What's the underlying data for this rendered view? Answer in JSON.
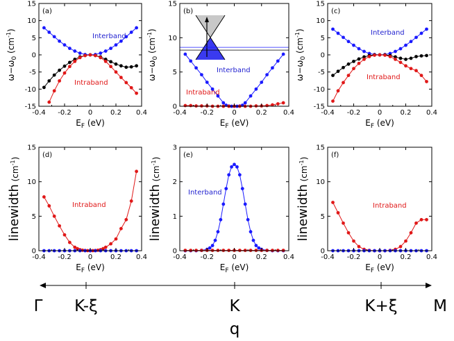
{
  "chart_data": [
    {
      "type": "line",
      "panel_label": "(a)",
      "xlabel": "E",
      "xlabel_sub": "F",
      "xlabel_unit": " (eV)",
      "ylabel": "ω−ω",
      "ylabel_sub": "0",
      "ylabel_unit": " (cm",
      "xlim": [
        -0.4,
        0.4
      ],
      "ylim": [
        -15,
        15
      ],
      "xticks": [
        "-0.4",
        "-0.2",
        "0",
        "0.2",
        "0.4"
      ],
      "yticks": [
        "-15",
        "-10",
        "-5",
        "0",
        "5",
        "10",
        "15"
      ],
      "series": [
        {
          "name": "Interband",
          "color": "#1a1aff",
          "x": [
            -0.36,
            -0.32,
            -0.28,
            -0.24,
            -0.2,
            -0.16,
            -0.12,
            -0.08,
            -0.04,
            0,
            0.04,
            0.08,
            0.12,
            0.16,
            0.2,
            0.24,
            0.28,
            0.32,
            0.36
          ],
          "y": [
            7.9,
            6.6,
            5.3,
            4.0,
            2.9,
            1.9,
            1.1,
            0.5,
            0.1,
            0,
            0.1,
            0.5,
            1.1,
            1.9,
            2.9,
            4.0,
            5.3,
            6.6,
            7.9
          ]
        },
        {
          "name": "",
          "color": "#000000",
          "x": [
            -0.36,
            -0.32,
            -0.28,
            -0.24,
            -0.2,
            -0.16,
            -0.12,
            -0.08,
            -0.04,
            0,
            0.04,
            0.08,
            0.12,
            0.16,
            0.2,
            0.24,
            0.28,
            0.32,
            0.36
          ],
          "y": [
            -9.5,
            -7.6,
            -5.9,
            -4.5,
            -3.3,
            -2.2,
            -1.3,
            -0.6,
            -0.2,
            0,
            -0.2,
            -0.6,
            -1.3,
            -2.0,
            -2.7,
            -3.2,
            -3.6,
            -3.5,
            -3.2
          ]
        },
        {
          "name": "Intraband",
          "color": "#e01818",
          "x": [
            -0.32,
            -0.28,
            -0.24,
            -0.2,
            -0.16,
            -0.12,
            -0.08,
            -0.04,
            0,
            0.04,
            0.08,
            0.12,
            0.16,
            0.2,
            0.24,
            0.28,
            0.32,
            0.36
          ],
          "y": [
            -13.8,
            -10.5,
            -7.6,
            -5.3,
            -3.4,
            -1.9,
            -0.8,
            -0.2,
            0,
            -0.2,
            -0.8,
            -1.9,
            -3.4,
            -5.0,
            -6.6,
            -8.1,
            -9.6,
            -11.2
          ]
        }
      ],
      "annotations": [
        "Interband",
        "Intraband"
      ]
    },
    {
      "type": "line",
      "panel_label": "(b)",
      "xlabel": "E",
      "xlabel_sub": "F",
      "xlabel_unit": " (eV)",
      "ylabel": "ω−ω",
      "ylabel_sub": "0",
      "ylabel_unit": " (cm",
      "xlim": [
        -0.4,
        0.4
      ],
      "ylim": [
        0,
        15
      ],
      "xticks": [
        "-0.4",
        "-0.2",
        "0",
        "0.2",
        "0.4"
      ],
      "yticks": [
        "0",
        "5",
        "10",
        "15"
      ],
      "series": [
        {
          "name": "Interband",
          "color": "#1a1aff",
          "x": [
            -0.36,
            -0.32,
            -0.28,
            -0.24,
            -0.2,
            -0.16,
            -0.12,
            -0.08,
            -0.06,
            -0.04,
            -0.02,
            0,
            0.02,
            0.04,
            0.06,
            0.08,
            0.12,
            0.16,
            0.2,
            0.24,
            0.28,
            0.32,
            0.36
          ],
          "y": [
            7.6,
            6.6,
            5.6,
            4.6,
            3.5,
            2.5,
            1.5,
            0.5,
            0.15,
            0.03,
            0,
            0,
            0,
            0.03,
            0.15,
            0.5,
            1.5,
            2.5,
            3.5,
            4.6,
            5.6,
            6.6,
            7.6
          ]
        },
        {
          "name": "Intraband",
          "color": "#e01818",
          "x": [
            -0.36,
            -0.32,
            -0.28,
            -0.24,
            -0.2,
            -0.16,
            -0.12,
            -0.08,
            -0.04,
            0,
            0.04,
            0.08,
            0.12,
            0.16,
            0.2,
            0.24,
            0.28,
            0.32,
            0.36
          ],
          "y": [
            0.1,
            0.1,
            0.05,
            0.05,
            0.05,
            0,
            0,
            0,
            0,
            0,
            0,
            0,
            0,
            0.05,
            0.05,
            0.1,
            0.2,
            0.35,
            0.5
          ]
        }
      ],
      "guide_lines": [
        {
          "x": [
            -0.4,
            0.4
          ],
          "y": [
            8.2,
            8.2
          ]
        },
        {
          "x": [
            -0.4,
            0.4
          ],
          "y": [
            8.6,
            8.6
          ]
        }
      ],
      "annotations": [
        "Interband",
        "Intraband"
      ],
      "inset": "Dirac cone diagram with upward arrow"
    },
    {
      "type": "line",
      "panel_label": "(c)",
      "xlabel": "E",
      "xlabel_sub": "F",
      "xlabel_unit": " (eV)",
      "ylabel": "ω−ω",
      "ylabel_sub": "0",
      "ylabel_unit": " (cm",
      "xlim": [
        -0.4,
        0.4
      ],
      "ylim": [
        -15,
        15
      ],
      "xticks": [
        "-0.4",
        "-0.2",
        "0",
        "0.2",
        "0.4"
      ],
      "yticks": [
        "-15",
        "-10",
        "-5",
        "0",
        "5",
        "10",
        "15"
      ],
      "series": [
        {
          "name": "Interband",
          "color": "#1a1aff",
          "x": [
            -0.36,
            -0.32,
            -0.28,
            -0.24,
            -0.2,
            -0.16,
            -0.12,
            -0.08,
            -0.04,
            0,
            0.04,
            0.08,
            0.12,
            0.16,
            0.2,
            0.24,
            0.28,
            0.32,
            0.36
          ],
          "y": [
            7.5,
            6.3,
            5.1,
            3.9,
            2.8,
            1.8,
            1.0,
            0.4,
            0.1,
            0,
            0.1,
            0.4,
            1.0,
            1.8,
            2.8,
            3.9,
            5.1,
            6.3,
            7.5
          ]
        },
        {
          "name": "",
          "color": "#000000",
          "x": [
            -0.36,
            -0.32,
            -0.28,
            -0.24,
            -0.2,
            -0.16,
            -0.12,
            -0.08,
            -0.04,
            0,
            0.04,
            0.08,
            0.12,
            0.16,
            0.2,
            0.24,
            0.28,
            0.32,
            0.36
          ],
          "y": [
            -6.0,
            -4.8,
            -3.7,
            -2.7,
            -1.9,
            -1.2,
            -0.6,
            -0.2,
            0,
            0,
            0,
            -0.2,
            -0.6,
            -1.0,
            -1.3,
            -1.0,
            -0.5,
            -0.3,
            -0.2
          ]
        },
        {
          "name": "Intraband",
          "color": "#e01818",
          "x": [
            -0.36,
            -0.32,
            -0.28,
            -0.24,
            -0.2,
            -0.16,
            -0.12,
            -0.08,
            -0.04,
            0,
            0.04,
            0.08,
            0.12,
            0.16,
            0.2,
            0.24,
            0.28,
            0.32,
            0.36
          ],
          "y": [
            -13.5,
            -10.5,
            -8.1,
            -6.0,
            -4.0,
            -2.5,
            -1.3,
            -0.5,
            -0.1,
            0,
            -0.1,
            -0.5,
            -1.3,
            -2.2,
            -3.2,
            -4.0,
            -4.6,
            -6.0,
            -7.8
          ]
        }
      ],
      "annotations": [
        "Interband",
        "Intraband"
      ]
    },
    {
      "type": "line",
      "panel_label": "(d)",
      "xlabel": "E",
      "xlabel_sub": "F",
      "xlabel_unit": " (eV)",
      "ylabel": "linewidth",
      "ylabel_unit": " (cm",
      "xlim": [
        -0.4,
        0.4
      ],
      "ylim": [
        0,
        15
      ],
      "xticks": [
        "-0.4",
        "-0.2",
        "0",
        "0.2",
        "0.4"
      ],
      "yticks": [
        "0",
        "5",
        "10",
        "15"
      ],
      "series": [
        {
          "name": "Intraband",
          "color": "#e01818",
          "x": [
            -0.36,
            -0.32,
            -0.28,
            -0.24,
            -0.2,
            -0.16,
            -0.12,
            -0.1,
            -0.08,
            -0.06,
            -0.04,
            -0.02,
            0,
            0.02,
            0.04,
            0.06,
            0.08,
            0.1,
            0.12,
            0.16,
            0.2,
            0.24,
            0.28,
            0.32,
            0.36
          ],
          "y": [
            7.8,
            6.5,
            5.0,
            3.6,
            2.3,
            1.2,
            0.5,
            0.3,
            0.15,
            0.07,
            0.03,
            0.01,
            0,
            0.01,
            0.03,
            0.07,
            0.15,
            0.3,
            0.5,
            1.0,
            1.7,
            3.2,
            4.5,
            7.2,
            11.5
          ]
        },
        {
          "name": "",
          "color": "#1a1aff",
          "x": [
            -0.36,
            -0.32,
            -0.28,
            -0.24,
            -0.2,
            -0.16,
            -0.12,
            -0.08,
            -0.04,
            0,
            0.04,
            0.08,
            0.12,
            0.16,
            0.2,
            0.24,
            0.28,
            0.32,
            0.36
          ],
          "y": [
            0,
            0,
            0,
            0,
            0,
            0,
            0,
            0,
            0,
            0,
            0,
            0,
            0,
            0,
            0,
            0,
            0,
            0,
            0
          ]
        }
      ],
      "annotations": [
        "Intraband"
      ]
    },
    {
      "type": "line",
      "panel_label": "(e)",
      "xlabel": "E",
      "xlabel_sub": "F",
      "xlabel_unit": " (eV)",
      "ylabel": "linewidth",
      "ylabel_unit": " (cm",
      "xlim": [
        -0.4,
        0.4
      ],
      "ylim": [
        0,
        3
      ],
      "xticks": [
        "-0.4",
        "-0.2",
        "0",
        "0.2",
        "0.4"
      ],
      "yticks": [
        "0",
        "1",
        "2",
        "3"
      ],
      "series": [
        {
          "name": "Interband",
          "color": "#1a1aff",
          "x": [
            -0.36,
            -0.32,
            -0.28,
            -0.24,
            -0.2,
            -0.18,
            -0.16,
            -0.14,
            -0.12,
            -0.1,
            -0.08,
            -0.06,
            -0.04,
            -0.02,
            0,
            0.02,
            0.04,
            0.06,
            0.08,
            0.1,
            0.12,
            0.14,
            0.16,
            0.18,
            0.2,
            0.24,
            0.28,
            0.32,
            0.36
          ],
          "y": [
            0,
            0,
            0,
            0.01,
            0.04,
            0.08,
            0.15,
            0.3,
            0.55,
            0.9,
            1.35,
            1.8,
            2.2,
            2.43,
            2.5,
            2.43,
            2.2,
            1.8,
            1.35,
            0.9,
            0.55,
            0.3,
            0.15,
            0.08,
            0.04,
            0.01,
            0,
            0,
            0
          ]
        },
        {
          "name": "Intraband",
          "color": "#e01818",
          "x": [
            -0.36,
            -0.32,
            -0.28,
            -0.24,
            -0.2,
            -0.16,
            -0.12,
            -0.08,
            -0.04,
            0,
            0.04,
            0.08,
            0.12,
            0.16,
            0.2,
            0.24,
            0.28,
            0.32,
            0.36
          ],
          "y": [
            0.01,
            0.01,
            0.01,
            0.01,
            0.01,
            0.01,
            0.01,
            0.01,
            0.01,
            0.01,
            0.01,
            0.01,
            0.01,
            0.01,
            0.01,
            0.01,
            0.01,
            0.01,
            0.01
          ]
        }
      ],
      "annotations": [
        "Interband"
      ]
    },
    {
      "type": "line",
      "panel_label": "(f)",
      "xlabel": "E",
      "xlabel_sub": "F",
      "xlabel_unit": " (eV)",
      "ylabel": "linewidth",
      "ylabel_unit": " (cm",
      "xlim": [
        -0.4,
        0.4
      ],
      "ylim": [
        0,
        15
      ],
      "xticks": [
        "-0.4",
        "-0.2",
        "0",
        "0.2",
        "0.4"
      ],
      "yticks": [
        "0",
        "5",
        "10",
        "15"
      ],
      "series": [
        {
          "name": "Intraband",
          "color": "#e01818",
          "x": [
            -0.36,
            -0.32,
            -0.28,
            -0.24,
            -0.2,
            -0.16,
            -0.12,
            -0.08,
            -0.04,
            0,
            0.04,
            0.08,
            0.12,
            0.16,
            0.2,
            0.24,
            0.28,
            0.32,
            0.36
          ],
          "y": [
            7.0,
            5.5,
            4.0,
            2.6,
            1.4,
            0.6,
            0.2,
            0.05,
            0,
            0,
            0,
            0.05,
            0.2,
            0.6,
            1.4,
            2.6,
            4.0,
            4.5,
            4.5
          ]
        },
        {
          "name": "",
          "color": "#1a1aff",
          "x": [
            -0.36,
            -0.32,
            -0.28,
            -0.24,
            -0.2,
            -0.16,
            -0.12,
            -0.08,
            -0.04,
            0,
            0.04,
            0.08,
            0.12,
            0.16,
            0.2,
            0.24,
            0.28,
            0.32,
            0.36
          ],
          "y": [
            0,
            0,
            0,
            0,
            0,
            0,
            0,
            0,
            0,
            0,
            0,
            0,
            0,
            0,
            0,
            0,
            0,
            0,
            0
          ]
        }
      ],
      "annotations": [
        "Intraband"
      ]
    }
  ],
  "q_axis": {
    "points": [
      "Γ",
      "K-ξ",
      "K",
      "K+ξ",
      "M"
    ],
    "label": "q",
    "exponent": "-1",
    "close_paren": ")"
  }
}
